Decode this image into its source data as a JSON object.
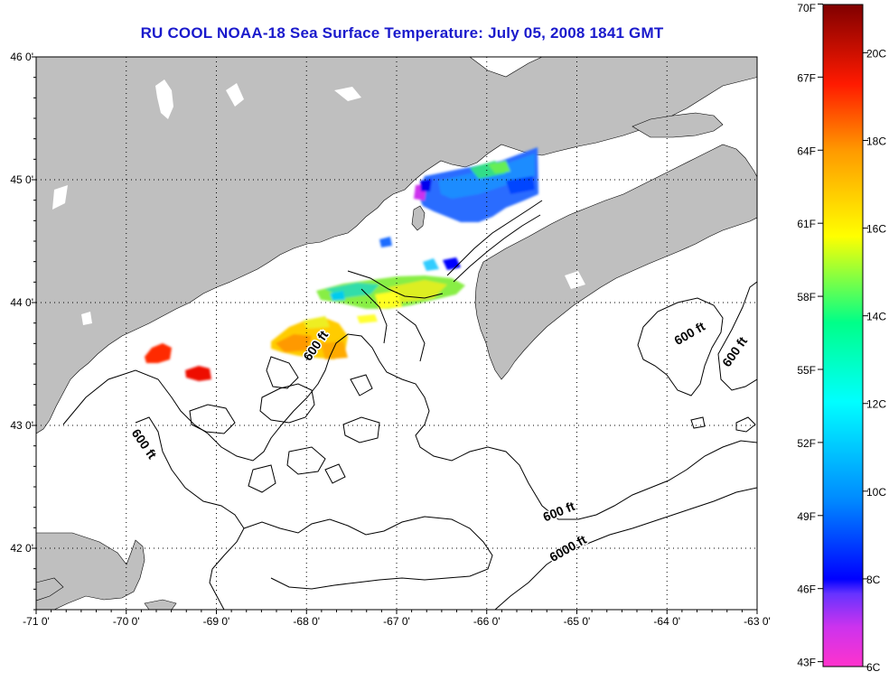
{
  "title": "RU COOL  NOAA-18  Sea Surface Temperature:  July 05, 2008 1841 GMT",
  "map": {
    "lon_range": [
      -71,
      -63
    ],
    "lat_range": [
      41.5,
      46
    ],
    "lon_ticks": [
      -71,
      -70,
      -69,
      -68,
      -67,
      -66,
      -65,
      -64,
      -63
    ],
    "lat_ticks": [
      42,
      43,
      44,
      45,
      46
    ],
    "lon_tick_labels": [
      "-71 0'",
      "-70 0'",
      "-69 0'",
      "-68 0'",
      "-67 0'",
      "-66 0'",
      "-65 0'",
      "-64 0'",
      "-63 0'"
    ],
    "lat_tick_labels": [
      "42 0'",
      "43 0'",
      "44 0'",
      "45 0'",
      "46 0'"
    ],
    "grid": "dotted",
    "land_color": "#bfbfbf",
    "contour_labels": [
      {
        "text": "600 ft",
        "lon": -67.9,
        "lat": 43.65,
        "angle": -55
      },
      {
        "text": "600 ft",
        "lon": -69.8,
        "lat": 42.85,
        "angle": 55
      },
      {
        "text": "600 ft",
        "lon": -63.75,
        "lat": 43.75,
        "angle": -30
      },
      {
        "text": "600 ft",
        "lon": -63.25,
        "lat": 43.6,
        "angle": -55
      },
      {
        "text": "600 ft",
        "lon": -65.2,
        "lat": 42.3,
        "angle": -22
      },
      {
        "text": "6000 ft",
        "lon": -65.1,
        "lat": 42.0,
        "angle": -30
      }
    ]
  },
  "colorbar": {
    "range_c": [
      6,
      21.1
    ],
    "left_labels": [
      "70F",
      "67F",
      "64F",
      "61F",
      "58F",
      "55F",
      "52F",
      "49F",
      "46F",
      "43F"
    ],
    "right_labels": [
      "20C",
      "18C",
      "16C",
      "14C",
      "12C",
      "10C",
      "8C",
      "6C"
    ],
    "gradient": [
      "#ff33cc",
      "#aa33ee",
      "#0000ff",
      "#0099ff",
      "#00ffff",
      "#00ff66",
      "#ffff00",
      "#ff9900",
      "#ff0000",
      "#8b0000"
    ]
  }
}
